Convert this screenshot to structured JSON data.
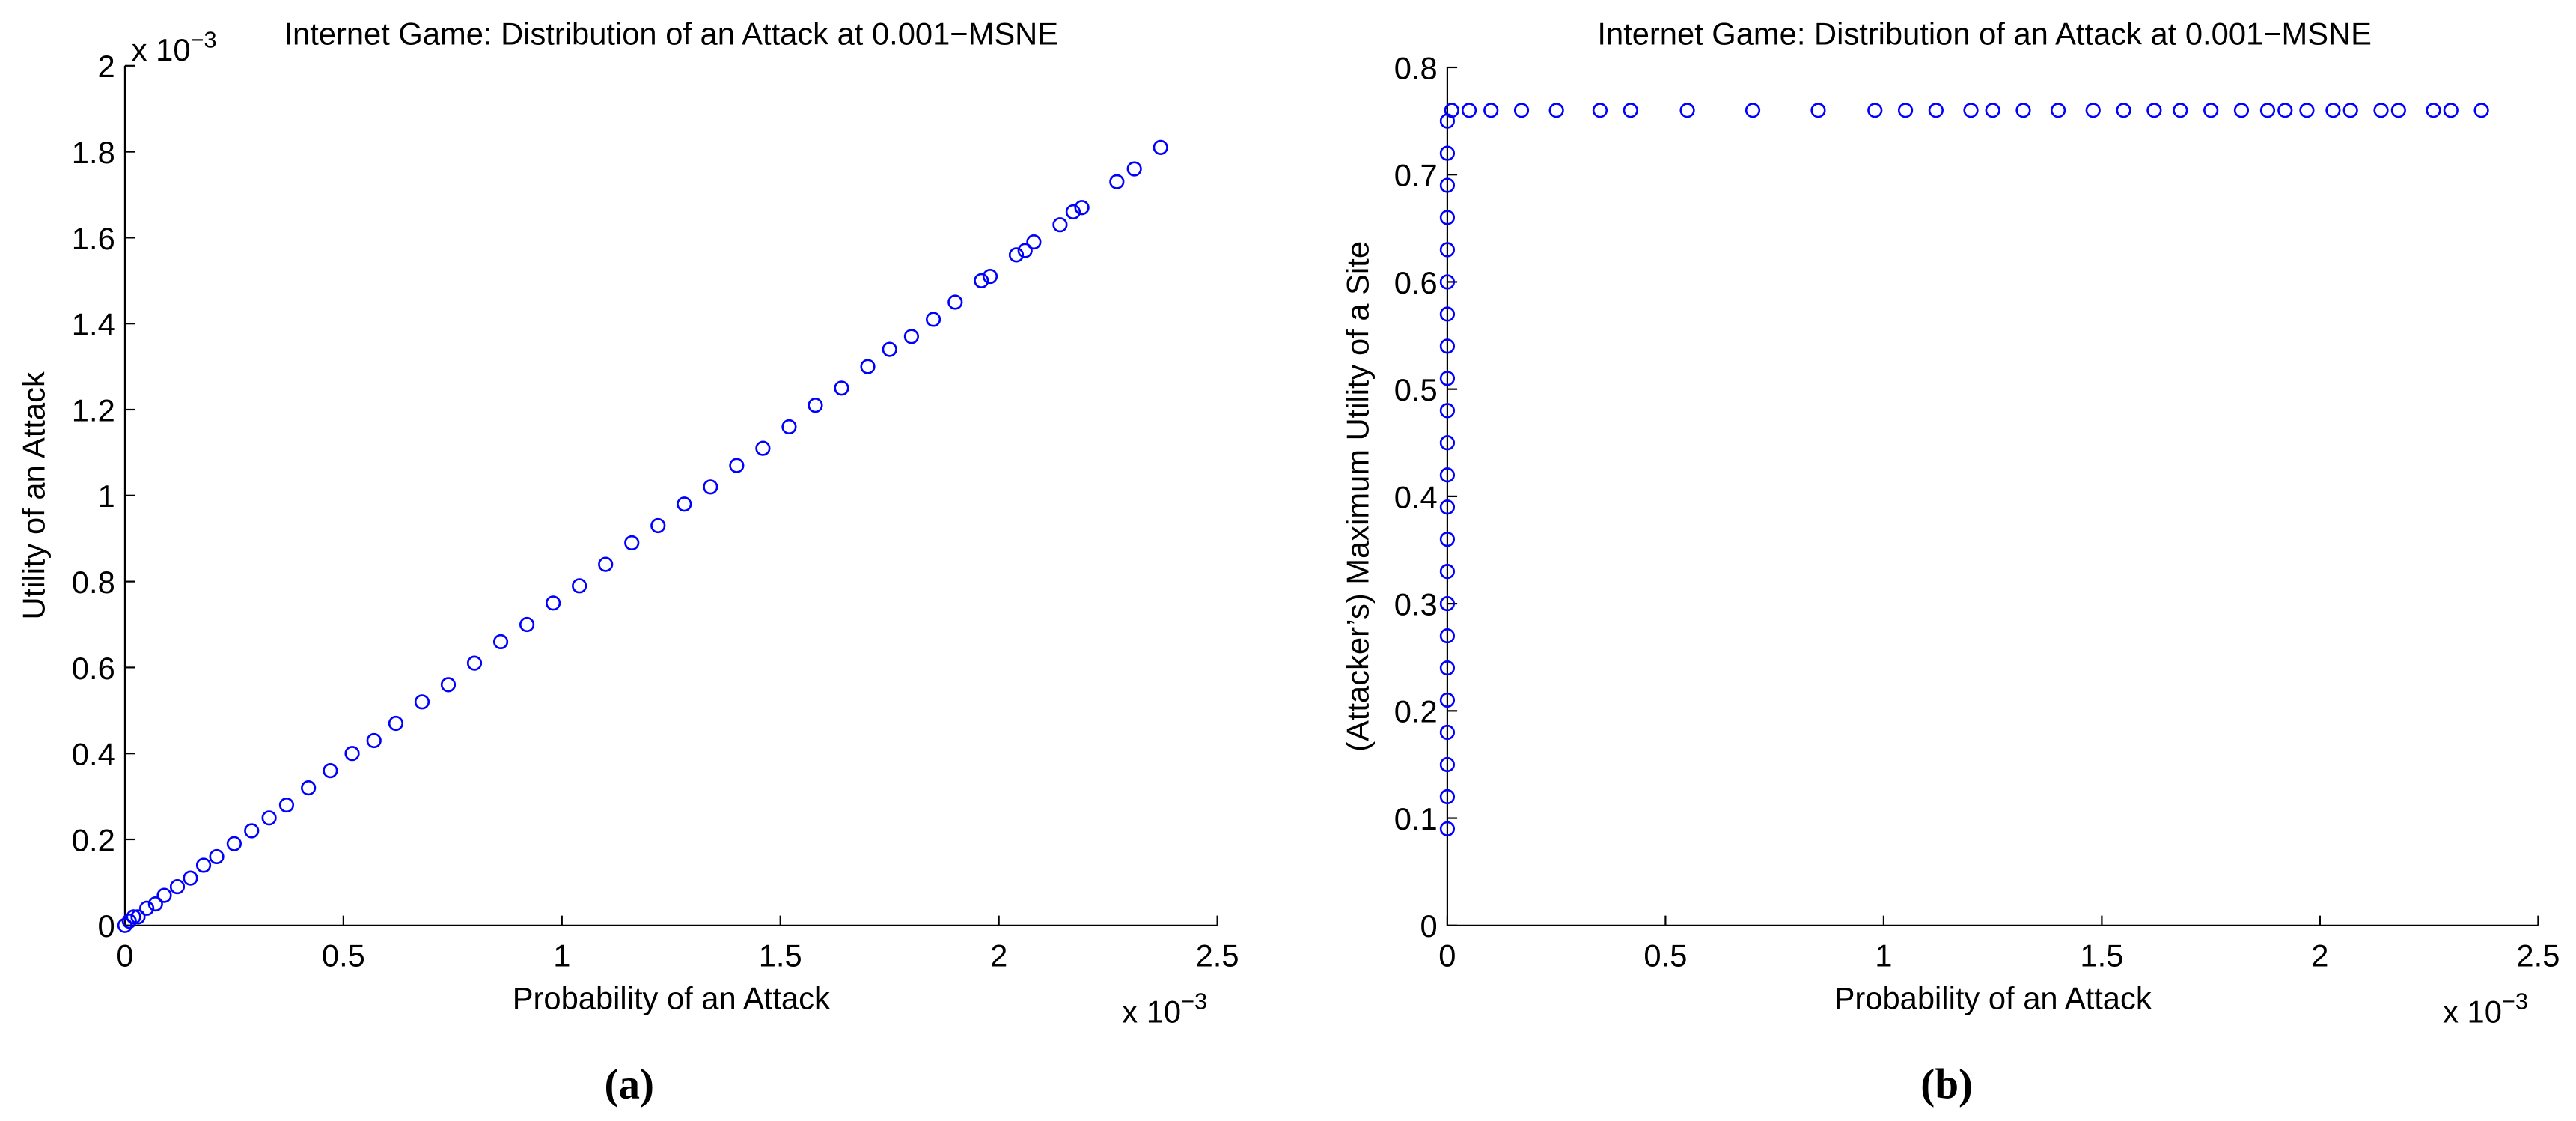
{
  "chart_data": [
    {
      "type": "scatter",
      "title": "Internet Game: Distribution of an Attack at 0.001−MSNE",
      "xlabel": "Probability of an Attack",
      "ylabel": "Utility of an Attack",
      "x_multiplier": {
        "base": "x 10",
        "exponent": "−3"
      },
      "y_multiplier": {
        "base": "x 10",
        "exponent": "−3"
      },
      "caption": "(a)",
      "color": "#0000ff",
      "xlim": [
        0,
        2.5
      ],
      "ylim": [
        0,
        2
      ],
      "xticks": [
        0,
        0.5,
        1,
        1.5,
        2,
        2.5
      ],
      "yticks": [
        0,
        0.2,
        0.4,
        0.6,
        0.8,
        1,
        1.2,
        1.4,
        1.6,
        1.8,
        2
      ],
      "x": [
        0,
        0.01,
        0.02,
        0.03,
        0.05,
        0.07,
        0.09,
        0.12,
        0.15,
        0.18,
        0.21,
        0.25,
        0.29,
        0.33,
        0.37,
        0.42,
        0.47,
        0.52,
        0.57,
        0.62,
        0.68,
        0.74,
        0.8,
        0.86,
        0.92,
        0.98,
        1.04,
        1.1,
        1.16,
        1.22,
        1.28,
        1.34,
        1.4,
        1.46,
        1.52,
        1.58,
        1.64,
        1.7,
        1.75,
        1.8,
        1.85,
        1.9,
        1.96,
        1.98,
        2.04,
        2.06,
        2.08,
        2.14,
        2.17,
        2.19,
        2.27,
        2.31,
        2.37
      ],
      "y": [
        0,
        0.01,
        0.02,
        0.02,
        0.04,
        0.05,
        0.07,
        0.09,
        0.11,
        0.14,
        0.16,
        0.19,
        0.22,
        0.25,
        0.28,
        0.32,
        0.36,
        0.4,
        0.43,
        0.47,
        0.52,
        0.56,
        0.61,
        0.66,
        0.7,
        0.75,
        0.79,
        0.84,
        0.89,
        0.93,
        0.98,
        1.02,
        1.07,
        1.11,
        1.16,
        1.21,
        1.25,
        1.3,
        1.34,
        1.37,
        1.41,
        1.45,
        1.5,
        1.51,
        1.56,
        1.57,
        1.59,
        1.63,
        1.66,
        1.67,
        1.73,
        1.76,
        1.81
      ]
    },
    {
      "type": "scatter",
      "title": "Internet Game: Distribution of an Attack at 0.001−MSNE",
      "xlabel": "Probability of an Attack",
      "ylabel": "(Attacker’s) Maximum Utility of a Site",
      "x_multiplier": {
        "base": "x 10",
        "exponent": "−3"
      },
      "caption": "(b)",
      "color": "#0000ff",
      "xlim": [
        0,
        2.5
      ],
      "ylim": [
        0,
        0.8
      ],
      "xticks": [
        0,
        0.5,
        1,
        1.5,
        2,
        2.5
      ],
      "yticks": [
        0,
        0.1,
        0.2,
        0.3,
        0.4,
        0.5,
        0.6,
        0.7,
        0.8
      ],
      "x": [
        0,
        0,
        0,
        0,
        0,
        0,
        0,
        0,
        0,
        0,
        0,
        0,
        0,
        0,
        0,
        0,
        0,
        0,
        0,
        0,
        0,
        0,
        0,
        0.01,
        0.05,
        0.1,
        0.17,
        0.25,
        0.35,
        0.42,
        0.55,
        0.7,
        0.85,
        0.98,
        1.05,
        1.12,
        1.2,
        1.25,
        1.32,
        1.4,
        1.48,
        1.55,
        1.62,
        1.68,
        1.75,
        1.82,
        1.88,
        1.92,
        1.97,
        2.03,
        2.07,
        2.14,
        2.18,
        2.26,
        2.3,
        2.37
      ],
      "y": [
        0.09,
        0.12,
        0.15,
        0.18,
        0.21,
        0.24,
        0.27,
        0.3,
        0.33,
        0.36,
        0.39,
        0.42,
        0.45,
        0.48,
        0.51,
        0.54,
        0.57,
        0.6,
        0.63,
        0.66,
        0.69,
        0.72,
        0.75,
        0.76,
        0.76,
        0.76,
        0.76,
        0.76,
        0.76,
        0.76,
        0.76,
        0.76,
        0.76,
        0.76,
        0.76,
        0.76,
        0.76,
        0.76,
        0.76,
        0.76,
        0.76,
        0.76,
        0.76,
        0.76,
        0.76,
        0.76,
        0.76,
        0.76,
        0.76,
        0.76,
        0.76,
        0.76,
        0.76,
        0.76,
        0.76,
        0.76
      ]
    }
  ]
}
